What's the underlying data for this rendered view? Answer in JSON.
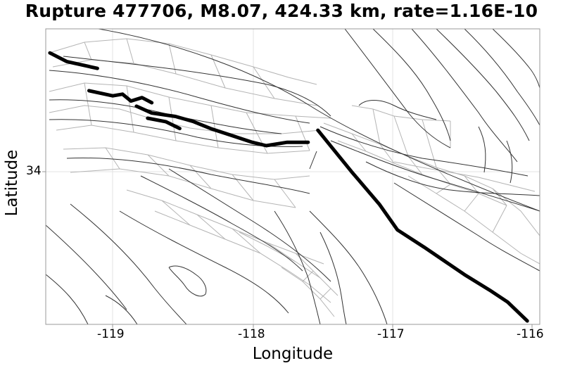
{
  "title": "Rupture 477706, M8.07, 424.33 km, rate=1.16E-10",
  "x_axis": {
    "label": "Longitude",
    "ticks": [
      "-119",
      "-118",
      "-117",
      "-116"
    ]
  },
  "y_axis": {
    "label": "Latitude",
    "ticks": [
      "34"
    ]
  },
  "chart_data": {
    "type": "map",
    "title": "Rupture 477706, M8.07, 424.33 km, rate=1.16E-10",
    "xlabel": "Longitude",
    "ylabel": "Latitude",
    "xlim": [
      -119.48,
      -115.94
    ],
    "ylim": [
      33.09,
      34.81
    ],
    "grid": true,
    "colors": {
      "rupture": "#000000",
      "fault_trace": "#333333",
      "fault_surface": "#b4b4b4"
    },
    "rupture_traces": [
      {
        "points": [
          [
            -119.45,
            34.67
          ],
          [
            -119.33,
            34.62
          ],
          [
            -119.11,
            34.58
          ]
        ]
      },
      {
        "points": [
          [
            -119.17,
            34.45
          ],
          [
            -119.0,
            34.42
          ],
          [
            -118.93,
            34.43
          ],
          [
            -118.87,
            34.39
          ],
          [
            -118.79,
            34.41
          ],
          [
            -118.72,
            34.38
          ]
        ]
      },
      {
        "points": [
          [
            -118.83,
            34.36
          ],
          [
            -118.72,
            34.32
          ],
          [
            -118.55,
            34.3
          ],
          [
            -118.42,
            34.27
          ],
          [
            -118.3,
            34.23
          ],
          [
            -118.15,
            34.19
          ],
          [
            -118.0,
            34.15
          ],
          [
            -117.9,
            34.13
          ],
          [
            -117.75,
            34.15
          ],
          [
            -117.6,
            34.15
          ]
        ]
      },
      {
        "points": [
          [
            -118.75,
            34.29
          ],
          [
            -118.62,
            34.27
          ],
          [
            -118.52,
            34.23
          ]
        ]
      },
      {
        "points": [
          [
            -117.53,
            34.22
          ],
          [
            -117.42,
            34.11
          ],
          [
            -117.29,
            33.98
          ],
          [
            -117.09,
            33.79
          ],
          [
            -116.96,
            33.64
          ],
          [
            -116.77,
            33.54
          ],
          [
            -116.48,
            33.38
          ],
          [
            -116.3,
            33.29
          ],
          [
            -116.17,
            33.22
          ],
          [
            -116.03,
            33.11
          ]
        ]
      }
    ]
  }
}
